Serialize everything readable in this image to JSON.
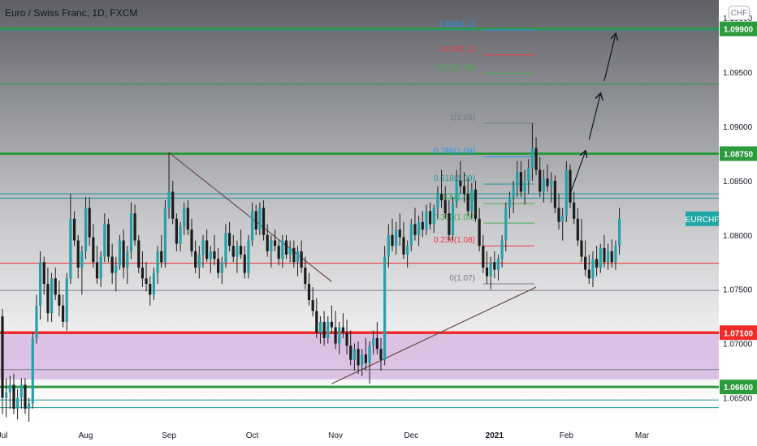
{
  "header": {
    "title": "Euro / Swiss Franc, 1D, FXCM",
    "currency_button": "CHF"
  },
  "colors": {
    "candle": "#26a0a8",
    "candle_wick": "#1e1e1e",
    "green_level": "#2e9a3e",
    "red_level": "#ef2b2b",
    "teal_level": "#1f9a9a",
    "fib_blue": "#2196f3",
    "fib_green": "#4caf50",
    "fib_red": "#f23645",
    "fib_gray": "#787b86",
    "pink_zone": "#d7b8e0",
    "trendline": "#6d4c4c",
    "arrow": "#131722"
  },
  "chart_data": {
    "type": "candlestick",
    "symbol": "EURCHF",
    "y_range": [
      1.0625,
      1.10166
    ],
    "y_ticks": [
      "1.10000",
      "1.09500",
      "1.09000",
      "1.08500",
      "1.08000",
      "1.07500",
      "1.07000",
      "1.06500"
    ],
    "x_labels": [
      "Jul",
      "Aug",
      "Sep",
      "Oct",
      "Nov",
      "Dec",
      "2021",
      "Feb",
      "Mar"
    ],
    "x_label_positions": [
      0,
      22,
      44,
      66,
      88,
      108,
      130,
      149,
      169
    ],
    "last_price_label": "EURCHF",
    "horizontal_levels": [
      {
        "price": 1.099,
        "label": "1.09900",
        "color": "green",
        "marked": true
      },
      {
        "price": 1.0875,
        "label": "1.08750",
        "color": "green",
        "marked": true
      },
      {
        "price": 1.071,
        "label": "1.07100",
        "color": "red",
        "marked": true
      },
      {
        "price": 1.066,
        "label": "1.06600",
        "color": "green",
        "marked": true
      },
      {
        "price": 1.0774,
        "label": "",
        "color": "red",
        "marked": false
      },
      {
        "price": 1.0838,
        "label": "",
        "color": "teal",
        "marked": false
      },
      {
        "price": 1.0834,
        "label": "",
        "color": "teal",
        "marked": false
      },
      {
        "price": 1.0641,
        "label": "",
        "color": "teal",
        "marked": false
      },
      {
        "price": 1.0648,
        "label": "",
        "color": "teal",
        "marked": false
      },
      {
        "price": 1.0989,
        "label": "",
        "color": "teal",
        "marked": false
      },
      {
        "price": 1.0939,
        "label": "",
        "color": "green",
        "marked": false
      },
      {
        "price": 1.0676,
        "label": "",
        "color": "gray",
        "marked": false
      },
      {
        "price": 1.0749,
        "label": "",
        "color": "gray",
        "marked": false
      }
    ],
    "fib_levels": [
      {
        "label": "1.618(1.1)",
        "price": 1.0989,
        "color": "blue"
      },
      {
        "label": "1.414(1.1)",
        "price": 1.0966,
        "color": "red"
      },
      {
        "label": "1.272(1.09)",
        "price": 1.0949,
        "color": "green"
      },
      {
        "label": "1(1.09)",
        "price": 1.0903,
        "color": "gray"
      },
      {
        "label": "0.786(1.09)",
        "price": 1.0872,
        "color": "blue"
      },
      {
        "label": "0.618(1.09)",
        "price": 1.0847,
        "color": "teal"
      },
      {
        "label": "0.5(1.08)",
        "price": 1.0829,
        "color": "green"
      },
      {
        "label": "0.382(1.08)",
        "price": 1.0811,
        "color": "green"
      },
      {
        "label": "0.236(1.08)",
        "price": 1.079,
        "color": "red"
      },
      {
        "label": "0(1.07)",
        "price": 1.0755,
        "color": "gray"
      }
    ],
    "zone": {
      "from": 1.071,
      "to": 1.0667,
      "color": "pink"
    },
    "trendlines": [
      {
        "from": [
          44,
          1.0876
        ],
        "to": [
          87,
          1.0757
        ]
      },
      {
        "from": [
          87,
          1.0663
        ],
        "to": [
          141,
          1.0752
        ]
      }
    ],
    "arrows": [
      {
        "from": [
          150,
          1.0838
        ],
        "to": [
          154,
          1.0877
        ]
      },
      {
        "from": [
          155,
          1.0888
        ],
        "to": [
          158,
          1.093
        ]
      },
      {
        "from": [
          159,
          1.0942
        ],
        "to": [
          162,
          1.0985
        ]
      }
    ],
    "ohlc": [
      [
        1.0725,
        1.0732,
        1.0635,
        1.065
      ],
      [
        1.065,
        1.0668,
        1.0632,
        1.0655
      ],
      [
        1.0655,
        1.067,
        1.064,
        1.0662
      ],
      [
        1.0662,
        1.0672,
        1.0635,
        1.064
      ],
      [
        1.064,
        1.0658,
        1.063,
        1.065
      ],
      [
        1.065,
        1.0668,
        1.064,
        1.0662
      ],
      [
        1.0662,
        1.0668,
        1.0635,
        1.064
      ],
      [
        1.064,
        1.065,
        1.0628,
        1.0645
      ],
      [
        1.0645,
        1.071,
        1.064,
        1.0705
      ],
      [
        1.0705,
        1.0745,
        1.07,
        1.0735
      ],
      [
        1.0735,
        1.0785,
        1.0722,
        1.0775
      ],
      [
        1.0775,
        1.078,
        1.0745,
        1.0755
      ],
      [
        1.0755,
        1.077,
        1.072,
        1.0728
      ],
      [
        1.0728,
        1.0765,
        1.072,
        1.076
      ],
      [
        1.076,
        1.077,
        1.074,
        1.0745
      ],
      [
        1.0745,
        1.0758,
        1.0725,
        1.0735
      ],
      [
        1.0735,
        1.0745,
        1.0715,
        1.072
      ],
      [
        1.072,
        1.0765,
        1.0712,
        1.076
      ],
      [
        1.076,
        1.0838,
        1.0755,
        1.0815
      ],
      [
        1.0815,
        1.0822,
        1.079,
        1.0795
      ],
      [
        1.0795,
        1.08,
        1.076,
        1.077
      ],
      [
        1.077,
        1.079,
        1.0745,
        1.0785
      ],
      [
        1.0785,
        1.0835,
        1.0778,
        1.0825
      ],
      [
        1.0825,
        1.0835,
        1.079,
        1.0798
      ],
      [
        1.0798,
        1.081,
        1.077,
        1.0775
      ],
      [
        1.0775,
        1.079,
        1.0755,
        1.076
      ],
      [
        1.076,
        1.0785,
        1.0752,
        1.078
      ],
      [
        1.078,
        1.082,
        1.0775,
        1.081
      ],
      [
        1.081,
        1.0815,
        1.0775,
        1.078
      ],
      [
        1.078,
        1.0792,
        1.0755,
        1.0765
      ],
      [
        1.0765,
        1.078,
        1.0748,
        1.0772
      ],
      [
        1.0772,
        1.08,
        1.0768,
        1.0795
      ],
      [
        1.0795,
        1.0805,
        1.076,
        1.077
      ],
      [
        1.077,
        1.079,
        1.0755,
        1.0785
      ],
      [
        1.0785,
        1.083,
        1.0778,
        1.082
      ],
      [
        1.082,
        1.0828,
        1.079,
        1.0795
      ],
      [
        1.0795,
        1.08,
        1.0765,
        1.077
      ],
      [
        1.077,
        1.0785,
        1.0752,
        1.076
      ],
      [
        1.076,
        1.0775,
        1.0748,
        1.0755
      ],
      [
        1.0755,
        1.0762,
        1.0735,
        1.0745
      ],
      [
        1.0745,
        1.077,
        1.074,
        1.0765
      ],
      [
        1.0765,
        1.079,
        1.0755,
        1.0785
      ],
      [
        1.0785,
        1.08,
        1.077,
        1.0775
      ],
      [
        1.0775,
        1.0832,
        1.077,
        1.0825
      ],
      [
        1.0825,
        1.0876,
        1.0815,
        1.084
      ],
      [
        1.084,
        1.085,
        1.081,
        1.0815
      ],
      [
        1.0815,
        1.082,
        1.0785,
        1.0792
      ],
      [
        1.0792,
        1.0812,
        1.0785,
        1.0808
      ],
      [
        1.0808,
        1.083,
        1.08,
        1.0825
      ],
      [
        1.0825,
        1.0832,
        1.08,
        1.0805
      ],
      [
        1.0805,
        1.0815,
        1.078,
        1.0785
      ],
      [
        1.0785,
        1.0795,
        1.0765,
        1.077
      ],
      [
        1.077,
        1.079,
        1.076,
        1.0782
      ],
      [
        1.0782,
        1.08,
        1.077,
        1.0795
      ],
      [
        1.0795,
        1.0805,
        1.0775,
        1.0778
      ],
      [
        1.0778,
        1.079,
        1.0765,
        1.0785
      ],
      [
        1.0785,
        1.08,
        1.0772,
        1.0778
      ],
      [
        1.0778,
        1.0788,
        1.076,
        1.0765
      ],
      [
        1.0765,
        1.078,
        1.0755,
        1.0775
      ],
      [
        1.0775,
        1.081,
        1.077,
        1.0802
      ],
      [
        1.0802,
        1.0812,
        1.0785,
        1.079
      ],
      [
        1.079,
        1.08,
        1.0775,
        1.078
      ],
      [
        1.078,
        1.0795,
        1.0765,
        1.079
      ],
      [
        1.079,
        1.0805,
        1.0778,
        1.0782
      ],
      [
        1.0782,
        1.079,
        1.076,
        1.0765
      ],
      [
        1.0765,
        1.08,
        1.076,
        1.0795
      ],
      [
        1.0795,
        1.083,
        1.079,
        1.0822
      ],
      [
        1.0822,
        1.0828,
        1.08,
        1.0805
      ],
      [
        1.0805,
        1.083,
        1.08,
        1.0825
      ],
      [
        1.0825,
        1.0832,
        1.0795,
        1.08
      ],
      [
        1.08,
        1.081,
        1.078,
        1.0785
      ],
      [
        1.0785,
        1.08,
        1.077,
        1.0795
      ],
      [
        1.0795,
        1.0805,
        1.0785,
        1.079
      ],
      [
        1.079,
        1.0795,
        1.0772,
        1.0778
      ],
      [
        1.0778,
        1.08,
        1.077,
        1.0795
      ],
      [
        1.0795,
        1.08,
        1.0778,
        1.0782
      ],
      [
        1.0782,
        1.0795,
        1.0775,
        1.0788
      ],
      [
        1.0788,
        1.0795,
        1.077,
        1.0775
      ],
      [
        1.0775,
        1.079,
        1.0762,
        1.0785
      ],
      [
        1.0785,
        1.0795,
        1.0765,
        1.077
      ],
      [
        1.077,
        1.078,
        1.075,
        1.0755
      ],
      [
        1.0755,
        1.0765,
        1.0735,
        1.074
      ],
      [
        1.074,
        1.0752,
        1.0725,
        1.073
      ],
      [
        1.073,
        1.0742,
        1.0705,
        1.071
      ],
      [
        1.071,
        1.0725,
        1.07,
        1.072
      ],
      [
        1.072,
        1.073,
        1.0698,
        1.0705
      ],
      [
        1.0705,
        1.0725,
        1.07,
        1.072
      ],
      [
        1.072,
        1.0735,
        1.071,
        1.0715
      ],
      [
        1.0715,
        1.073,
        1.0695,
        1.07
      ],
      [
        1.07,
        1.072,
        1.069,
        1.0715
      ],
      [
        1.0715,
        1.0728,
        1.0705,
        1.071
      ],
      [
        1.071,
        1.0722,
        1.069,
        1.0698
      ],
      [
        1.0698,
        1.0712,
        1.068,
        1.0685
      ],
      [
        1.0685,
        1.07,
        1.0675,
        1.0695
      ],
      [
        1.0695,
        1.0702,
        1.0672,
        1.068
      ],
      [
        1.068,
        1.0695,
        1.067,
        1.069
      ],
      [
        1.069,
        1.0705,
        1.0675,
        1.0682
      ],
      [
        1.0682,
        1.0702,
        1.0663,
        1.0698
      ],
      [
        1.0698,
        1.0712,
        1.069,
        1.0705
      ],
      [
        1.0705,
        1.072,
        1.069,
        1.0695
      ],
      [
        1.0695,
        1.0705,
        1.0675,
        1.0685
      ],
      [
        1.0685,
        1.079,
        1.068,
        1.078
      ],
      [
        1.078,
        1.081,
        1.077,
        1.08
      ],
      [
        1.08,
        1.0815,
        1.0785,
        1.079
      ],
      [
        1.079,
        1.0812,
        1.0782,
        1.0805
      ],
      [
        1.0805,
        1.082,
        1.079,
        1.0798
      ],
      [
        1.0798,
        1.0812,
        1.0778,
        1.0782
      ],
      [
        1.0782,
        1.0795,
        1.077,
        1.079
      ],
      [
        1.079,
        1.0815,
        1.0785,
        1.081
      ],
      [
        1.081,
        1.0825,
        1.0795,
        1.08
      ],
      [
        1.08,
        1.0818,
        1.079,
        1.0812
      ],
      [
        1.0812,
        1.0822,
        1.0798,
        1.0805
      ],
      [
        1.0805,
        1.0828,
        1.08,
        1.0822
      ],
      [
        1.0822,
        1.083,
        1.0805,
        1.081
      ],
      [
        1.081,
        1.0828,
        1.0802,
        1.0825
      ],
      [
        1.0825,
        1.0845,
        1.0815,
        1.0838
      ],
      [
        1.0838,
        1.086,
        1.0825,
        1.0832
      ],
      [
        1.0832,
        1.0845,
        1.0815,
        1.082
      ],
      [
        1.082,
        1.0832,
        1.0795,
        1.08
      ],
      [
        1.08,
        1.0835,
        1.0795,
        1.083
      ],
      [
        1.083,
        1.086,
        1.0825,
        1.085
      ],
      [
        1.085,
        1.0868,
        1.0838,
        1.0845
      ],
      [
        1.0845,
        1.0858,
        1.083,
        1.0838
      ],
      [
        1.0838,
        1.0852,
        1.0818,
        1.0822
      ],
      [
        1.0822,
        1.0848,
        1.0815,
        1.0842
      ],
      [
        1.0842,
        1.085,
        1.0812,
        1.0815
      ],
      [
        1.0815,
        1.0825,
        1.0785,
        1.079
      ],
      [
        1.079,
        1.08,
        1.0765,
        1.077
      ],
      [
        1.077,
        1.0785,
        1.0755,
        1.0762
      ],
      [
        1.0762,
        1.078,
        1.075,
        1.0775
      ],
      [
        1.0775,
        1.0785,
        1.076,
        1.0768
      ],
      [
        1.0768,
        1.0782,
        1.0758,
        1.0778
      ],
      [
        1.0778,
        1.08,
        1.077,
        1.0795
      ],
      [
        1.0795,
        1.083,
        1.0785,
        1.0825
      ],
      [
        1.0825,
        1.084,
        1.0815,
        1.0835
      ],
      [
        1.0835,
        1.085,
        1.082,
        1.0845
      ],
      [
        1.0845,
        1.0868,
        1.0835,
        1.0858
      ],
      [
        1.0858,
        1.0868,
        1.0835,
        1.084
      ],
      [
        1.084,
        1.086,
        1.0828,
        1.085
      ],
      [
        1.085,
        1.087,
        1.0838,
        1.0862
      ],
      [
        1.0862,
        1.0903,
        1.085,
        1.088
      ],
      [
        1.088,
        1.089,
        1.0855,
        1.086
      ],
      [
        1.086,
        1.0872,
        1.0835,
        1.084
      ],
      [
        1.084,
        1.086,
        1.083,
        1.0852
      ],
      [
        1.0852,
        1.0865,
        1.084,
        1.0845
      ],
      [
        1.0845,
        1.0858,
        1.083,
        1.085
      ],
      [
        1.085,
        1.0855,
        1.082,
        1.0825
      ],
      [
        1.0825,
        1.0838,
        1.0805,
        1.0812
      ],
      [
        1.0812,
        1.0825,
        1.0795,
        1.0818
      ],
      [
        1.0818,
        1.0868,
        1.0812,
        1.086
      ],
      [
        1.086,
        1.0865,
        1.0825,
        1.083
      ],
      [
        1.083,
        1.084,
        1.081,
        1.0815
      ],
      [
        1.0815,
        1.0825,
        1.079,
        1.0795
      ],
      [
        1.0795,
        1.0815,
        1.0775,
        1.078
      ],
      [
        1.078,
        1.0795,
        1.0762,
        1.0768
      ],
      [
        1.0768,
        1.0782,
        1.0755,
        1.076
      ],
      [
        1.076,
        1.0785,
        1.0752,
        1.0778
      ],
      [
        1.0778,
        1.079,
        1.0762,
        1.077
      ],
      [
        1.077,
        1.0792,
        1.0765,
        1.0788
      ],
      [
        1.0788,
        1.08,
        1.077,
        1.0775
      ],
      [
        1.0775,
        1.0792,
        1.0768,
        1.0785
      ],
      [
        1.0785,
        1.0796,
        1.077,
        1.0775
      ],
      [
        1.0775,
        1.0795,
        1.0768,
        1.079
      ],
      [
        1.079,
        1.0825,
        1.0782,
        1.0815
      ]
    ]
  },
  "time_axis": {
    "labels": [
      "Jul",
      "Aug",
      "Sep",
      "Oct",
      "Nov",
      "Dec",
      "2021",
      "Feb",
      "Mar"
    ]
  }
}
